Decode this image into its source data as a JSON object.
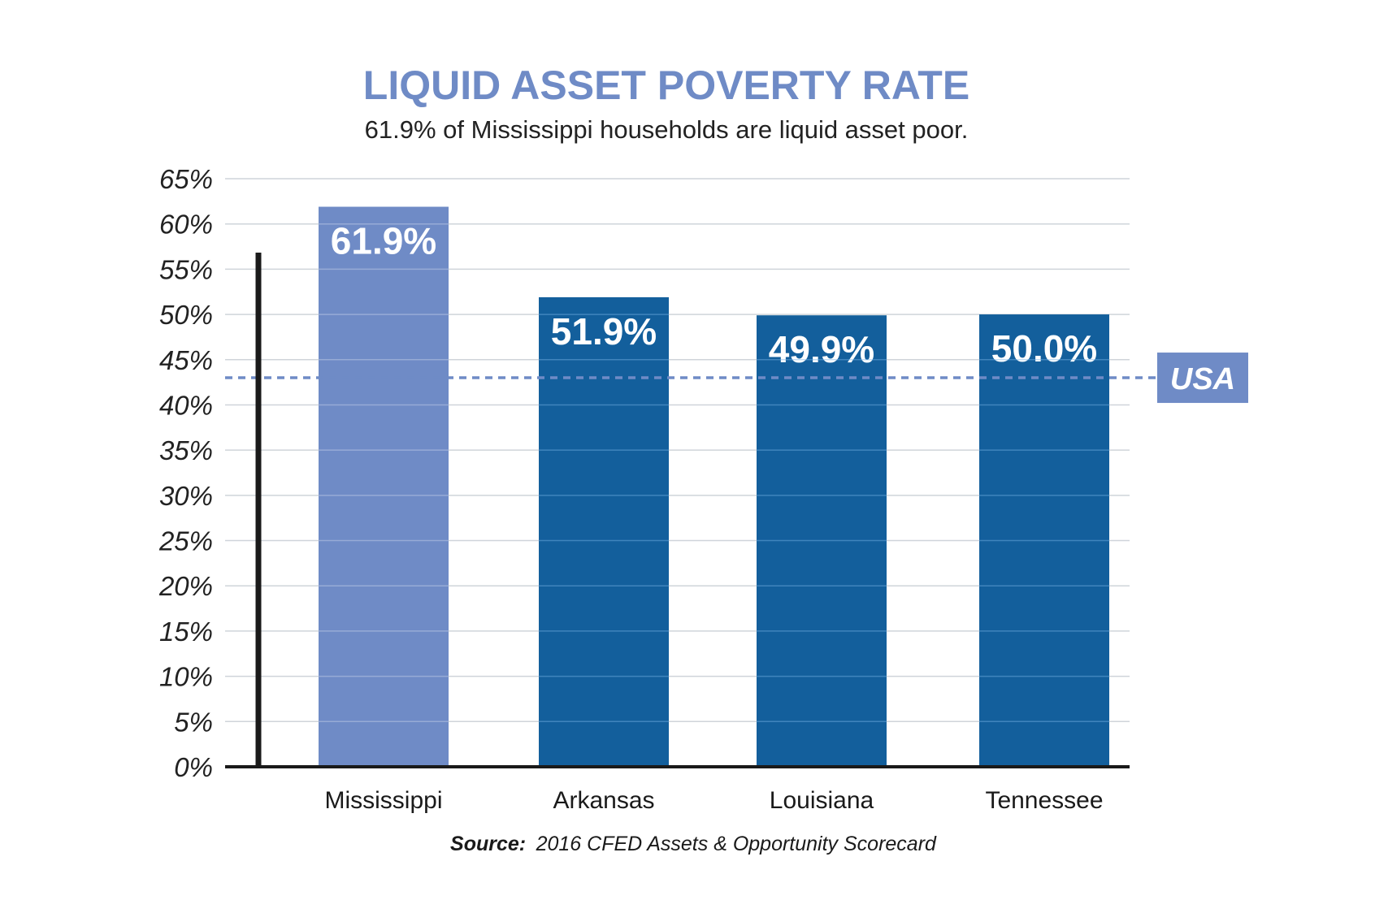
{
  "chart_data": {
    "type": "bar",
    "title": "LIQUID ASSET POVERTY RATE",
    "subtitle": "61.9% of Mississippi households are liquid asset poor.",
    "categories": [
      "Mississippi",
      "Arkansas",
      "Louisiana",
      "Tennessee"
    ],
    "values": [
      61.9,
      51.9,
      49.9,
      50.0
    ],
    "data_labels": [
      "61.9%",
      "51.9%",
      "49.9%",
      "50.0%"
    ],
    "ylim": [
      0,
      65
    ],
    "yticks": [
      0,
      5,
      10,
      15,
      20,
      25,
      30,
      35,
      40,
      45,
      50,
      55,
      60,
      65
    ],
    "ytick_labels": [
      "0%",
      "5%",
      "10%",
      "15%",
      "20%",
      "25%",
      "30%",
      "35%",
      "40%",
      "45%",
      "50%",
      "55%",
      "60%",
      "65%"
    ],
    "grid": true,
    "reference_line": {
      "label": "USA",
      "value": 43.0,
      "style": "dashed"
    },
    "source_key": "Source:",
    "source_text": "2016 CFED Assets & Opportunity Scorecard",
    "colors": {
      "highlight": "#6f8bc6",
      "bar": "#135f9c",
      "reference": "#6f8bc6",
      "title": "#6f8bc6",
      "grid": "#cfd4da"
    }
  }
}
